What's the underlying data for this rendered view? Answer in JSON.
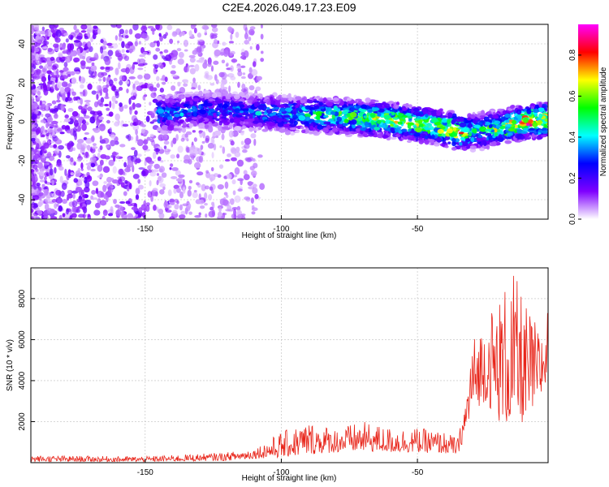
{
  "title": "C2E4.2026.049.17.23.E09",
  "chart_data": [
    {
      "type": "heatmap",
      "xlabel": "Height of straight line (km)",
      "ylabel": "Frequency (Hz)",
      "xlim": [
        -192,
        -2
      ],
      "ylim": [
        -50,
        50
      ],
      "xticks": [
        -150,
        -100,
        -50
      ],
      "yticks": [
        -40,
        -20,
        0,
        20,
        40
      ],
      "grid": true,
      "colorbar": {
        "label": "Normalized spectral amplitude",
        "range": [
          0,
          0.95
        ],
        "ticks": [
          0.0,
          0.2,
          0.4,
          0.6,
          0.8
        ],
        "colors": [
          "#ffffff",
          "#7f00ff",
          "#0000ff",
          "#00ffff",
          "#00ff00",
          "#ffff00",
          "#ff0000",
          "#ff00ff"
        ]
      },
      "ridge": {
        "name": "",
        "x": [
          -192,
          -165,
          -150,
          -130,
          -115,
          -100,
          -80,
          -60,
          -45,
          -35,
          -28,
          -20,
          -10,
          -2
        ],
        "y": [
          5,
          5,
          3,
          6,
          5,
          4,
          3,
          1,
          -2,
          -5,
          -5,
          -3,
          0,
          1
        ],
        "amplitude": [
          0.35,
          0.4,
          0.5,
          0.35,
          0.4,
          0.45,
          0.6,
          0.75,
          0.7,
          0.85,
          0.5,
          0.7,
          0.9,
          0.85
        ]
      }
    },
    {
      "type": "line",
      "xlabel": "Height of straight line (km)",
      "ylabel": "SNR (10 * v/v)",
      "xlim": [
        -192,
        -2
      ],
      "ylim": [
        0,
        9500
      ],
      "xticks": [
        -150,
        -100,
        -50
      ],
      "yticks": [
        2000,
        4000,
        6000,
        8000
      ],
      "grid": true,
      "color": "#e8251a",
      "envelope": {
        "x": [
          -192,
          -150,
          -120,
          -110,
          -100,
          -90,
          -80,
          -70,
          -60,
          -50,
          -40,
          -35,
          -32,
          -30,
          -25,
          -20,
          -15,
          -10,
          -5,
          -2
        ],
        "low": [
          50,
          50,
          100,
          200,
          250,
          400,
          500,
          550,
          500,
          500,
          450,
          400,
          1500,
          2500,
          3000,
          2000,
          1800,
          2000,
          3000,
          4000
        ],
        "high": [
          350,
          300,
          500,
          700,
          1500,
          2000,
          1700,
          2000,
          1700,
          1700,
          1500,
          1200,
          3500,
          6000,
          7200,
          8200,
          9400,
          7700,
          6500,
          7800
        ]
      }
    }
  ]
}
